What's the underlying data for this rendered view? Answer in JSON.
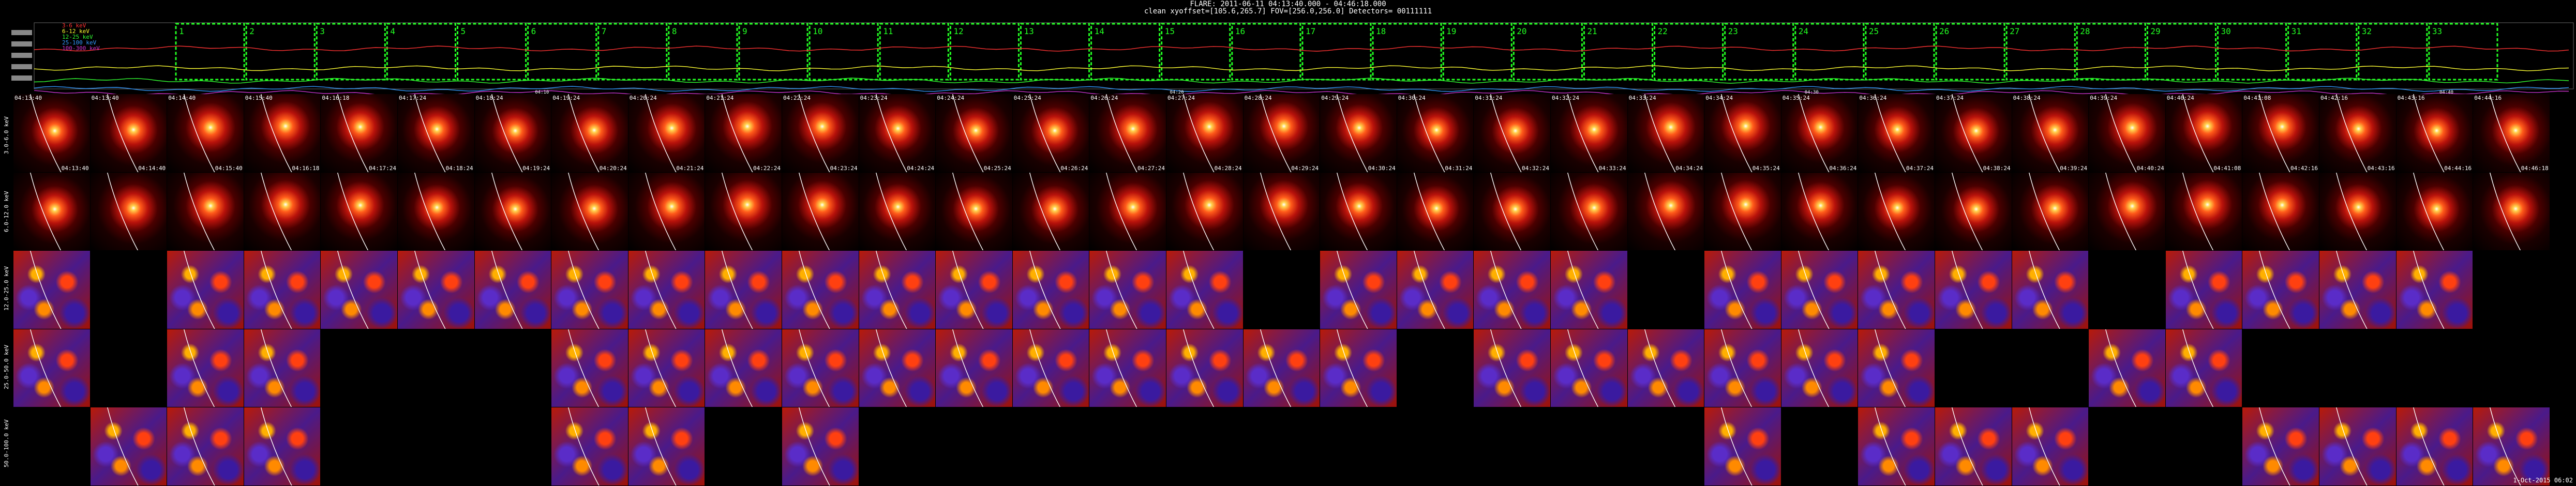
{
  "header": {
    "title": "FLARE: 2011-06-11 04:13:40.000 - 04:46:18.000",
    "subtitle": "clean   xyoffset=[105.6,265.7]   FOV=[256.0,256.0]   Detectors= 00111111"
  },
  "lightcurve": {
    "legend": [
      "3-6 keV",
      "6-12 keV",
      "12-25 keV",
      "25-100 keV",
      "100-300 keV"
    ],
    "legend_colors": [
      "#ff3333",
      "#ffff33",
      "#33ff33",
      "#3399ff",
      "#cc33cc"
    ],
    "intervals": [
      "1",
      "2",
      "3",
      "4",
      "5",
      "6",
      "7",
      "8",
      "9",
      "10",
      "11",
      "12",
      "13",
      "14",
      "15",
      "16",
      "17",
      "18",
      "19",
      "20",
      "21",
      "22",
      "23",
      "24",
      "25",
      "26",
      "27",
      "28",
      "29",
      "30",
      "31",
      "32",
      "33"
    ],
    "ticks": [
      "04:10",
      "04:20",
      "04:30",
      "04:40"
    ]
  },
  "energy_rows": [
    {
      "label": "3.0-6.0 keV"
    },
    {
      "label": "6.0-12.0 keV"
    },
    {
      "label": "12.0-25.0 keV"
    },
    {
      "label": "25.0-50.0 keV"
    },
    {
      "label": "50.0-100.0 keV"
    }
  ],
  "columns": [
    {
      "start": "04:13:40",
      "end": "04:13:40"
    },
    {
      "start": "04:13:40",
      "end": "04:14:40"
    },
    {
      "start": "04:14:40",
      "end": "04:15:40"
    },
    {
      "start": "04:15:40",
      "end": "04:16:18"
    },
    {
      "start": "04:16:18",
      "end": "04:17:24"
    },
    {
      "start": "04:17:24",
      "end": "04:18:24"
    },
    {
      "start": "04:18:24",
      "end": "04:19:24"
    },
    {
      "start": "04:19:24",
      "end": "04:20:24"
    },
    {
      "start": "04:20:24",
      "end": "04:21:24"
    },
    {
      "start": "04:21:24",
      "end": "04:22:24"
    },
    {
      "start": "04:22:24",
      "end": "04:23:24"
    },
    {
      "start": "04:23:24",
      "end": "04:24:24"
    },
    {
      "start": "04:24:24",
      "end": "04:25:24"
    },
    {
      "start": "04:25:24",
      "end": "04:26:24"
    },
    {
      "start": "04:26:24",
      "end": "04:27:24"
    },
    {
      "start": "04:27:24",
      "end": "04:28:24"
    },
    {
      "start": "04:28:24",
      "end": "04:29:24"
    },
    {
      "start": "04:29:24",
      "end": "04:30:24"
    },
    {
      "start": "04:30:24",
      "end": "04:31:24"
    },
    {
      "start": "04:31:24",
      "end": "04:32:24"
    },
    {
      "start": "04:32:24",
      "end": "04:33:24"
    },
    {
      "start": "04:33:24",
      "end": "04:34:24"
    },
    {
      "start": "04:34:24",
      "end": "04:35:24"
    },
    {
      "start": "04:35:24",
      "end": "04:36:24"
    },
    {
      "start": "04:36:24",
      "end": "04:37:24"
    },
    {
      "start": "04:37:24",
      "end": "04:38:24"
    },
    {
      "start": "04:38:24",
      "end": "04:39:24"
    },
    {
      "start": "04:39:24",
      "end": "04:40:24"
    },
    {
      "start": "04:40:24",
      "end": "04:41:08"
    },
    {
      "start": "04:41:08",
      "end": "04:42:16"
    },
    {
      "start": "04:42:16",
      "end": "04:43:16"
    },
    {
      "start": "04:43:16",
      "end": "04:44:16"
    },
    {
      "start": "04:44:16",
      "end": "04:46:18"
    }
  ],
  "presence": [
    [
      1,
      1,
      1,
      1,
      1,
      1,
      1,
      1,
      1,
      1,
      1,
      1,
      1,
      1,
      1,
      1,
      1,
      1,
      1,
      1,
      1,
      1,
      1,
      1,
      1,
      1,
      1,
      1,
      1,
      1,
      1,
      1,
      1
    ],
    [
      1,
      1,
      1,
      1,
      1,
      1,
      1,
      1,
      1,
      1,
      1,
      1,
      1,
      1,
      1,
      1,
      1,
      1,
      1,
      1,
      1,
      1,
      1,
      1,
      1,
      1,
      1,
      1,
      1,
      1,
      1,
      1,
      1
    ],
    [
      1,
      0,
      1,
      1,
      1,
      1,
      1,
      1,
      1,
      1,
      1,
      1,
      1,
      1,
      1,
      1,
      0,
      1,
      1,
      1,
      1,
      0,
      1,
      1,
      1,
      1,
      1,
      0,
      1,
      1,
      1,
      1,
      0
    ],
    [
      1,
      0,
      1,
      1,
      0,
      0,
      0,
      1,
      1,
      1,
      1,
      1,
      1,
      1,
      1,
      1,
      1,
      1,
      0,
      1,
      1,
      1,
      1,
      1,
      1,
      0,
      0,
      1,
      1,
      0,
      0,
      0,
      0
    ],
    [
      0,
      1,
      1,
      1,
      0,
      0,
      0,
      1,
      1,
      0,
      1,
      0,
      0,
      0,
      0,
      0,
      0,
      0,
      0,
      0,
      0,
      0,
      1,
      0,
      1,
      1,
      1,
      0,
      0,
      1,
      1,
      1,
      1
    ]
  ],
  "colors": {
    "background": "#000000",
    "interval_box": "#22ff22",
    "tile_border": "#aaaaaa"
  },
  "footer": "1-Oct-2015 06:02"
}
